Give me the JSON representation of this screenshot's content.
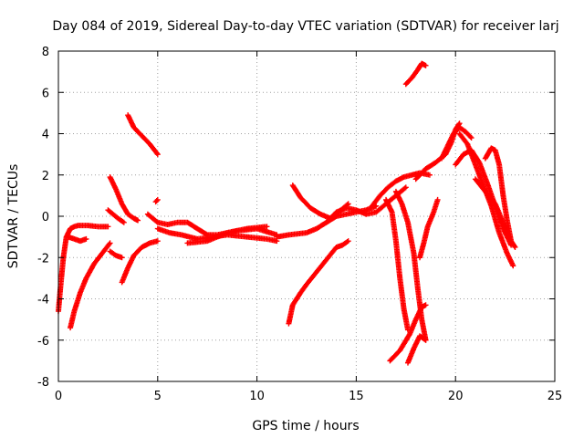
{
  "chart_data": {
    "type": "scatter",
    "title": "Day 084 of 2019, Sidereal Day-to-day VTEC variation (SDTVAR) for receiver larj",
    "xlabel": "GPS time / hours",
    "ylabel": "SDTVAR / TECUs",
    "xlim": [
      0,
      25
    ],
    "ylim": [
      -8,
      8
    ],
    "xticks": [
      0,
      5,
      10,
      15,
      20,
      25
    ],
    "yticks": [
      -8,
      -6,
      -4,
      -2,
      0,
      2,
      4,
      6,
      8
    ],
    "grid": true,
    "marker": "+",
    "series_color": "#ff0000",
    "segments": [
      {
        "name": "s1",
        "x": [
          0.0,
          0.1,
          0.25,
          0.4,
          0.6,
          0.8,
          1.0,
          1.5,
          2.0,
          2.5
        ],
        "y": [
          -4.6,
          -3.5,
          -2.0,
          -1.0,
          -0.6,
          -0.5,
          -0.45,
          -0.45,
          -0.5,
          -0.5
        ]
      },
      {
        "name": "s2",
        "x": [
          0.6,
          0.8,
          1.1,
          1.4,
          1.8,
          2.2,
          2.6
        ],
        "y": [
          -5.4,
          -4.6,
          -3.7,
          -3.0,
          -2.3,
          -1.8,
          -1.3
        ]
      },
      {
        "name": "s3",
        "x": [
          0.5,
          0.8,
          1.1,
          1.4
        ],
        "y": [
          -1.0,
          -1.1,
          -1.2,
          -1.1
        ]
      },
      {
        "name": "s4",
        "x": [
          2.6,
          2.9,
          3.2,
          3.5,
          3.8,
          4.0
        ],
        "y": [
          1.9,
          1.3,
          0.6,
          0.1,
          -0.1,
          -0.2
        ]
      },
      {
        "name": "s5",
        "x": [
          2.5,
          3.0,
          3.3
        ],
        "y": [
          0.3,
          -0.1,
          -0.3
        ]
      },
      {
        "name": "s6",
        "x": [
          2.6,
          2.9,
          3.2
        ],
        "y": [
          -1.7,
          -1.9,
          -2.0
        ]
      },
      {
        "name": "s7",
        "x": [
          3.2,
          3.5,
          3.8,
          4.2,
          4.6,
          5.0
        ],
        "y": [
          -3.2,
          -2.5,
          -1.9,
          -1.5,
          -1.3,
          -1.2
        ]
      },
      {
        "name": "s8",
        "x": [
          3.5,
          3.8,
          4.2,
          4.6,
          5.0
        ],
        "y": [
          4.9,
          4.3,
          3.9,
          3.5,
          3.0
        ]
      },
      {
        "name": "s9",
        "x": [
          4.9,
          5.0
        ],
        "y": [
          0.7,
          0.8
        ]
      },
      {
        "name": "s10",
        "x": [
          4.5,
          5.0,
          5.5,
          6.0,
          6.5,
          7.0,
          7.5,
          8.0,
          9.0,
          10.0,
          11.0
        ],
        "y": [
          0.1,
          -0.3,
          -0.4,
          -0.3,
          -0.3,
          -0.6,
          -0.9,
          -0.9,
          -0.7,
          -0.6,
          -0.9
        ]
      },
      {
        "name": "s11",
        "x": [
          5.0,
          5.6,
          6.2,
          7.0,
          7.8,
          8.5,
          9.5,
          10.5,
          11.0
        ],
        "y": [
          -0.6,
          -0.8,
          -0.9,
          -1.1,
          -1.0,
          -0.9,
          -1.0,
          -1.1,
          -1.2
        ]
      },
      {
        "name": "s12",
        "x": [
          6.5,
          7.5,
          8.5,
          9.5,
          10.5
        ],
        "y": [
          -1.3,
          -1.2,
          -0.8,
          -0.6,
          -0.5
        ]
      },
      {
        "name": "s13",
        "x": [
          11.0,
          11.6,
          12.5,
          13.0,
          13.5,
          14.0,
          14.5,
          15.0,
          15.5,
          16.0
        ],
        "y": [
          -1.0,
          -0.9,
          -0.8,
          -0.6,
          -0.3,
          0.0,
          0.1,
          0.2,
          0.3,
          0.5
        ]
      },
      {
        "name": "s14",
        "x": [
          11.6,
          11.8,
          12.2,
          12.5,
          13.0,
          13.5,
          14.0,
          14.3,
          14.6
        ],
        "y": [
          -5.2,
          -4.3,
          -3.7,
          -3.3,
          -2.7,
          -2.1,
          -1.5,
          -1.4,
          -1.2
        ]
      },
      {
        "name": "s15",
        "x": [
          11.8,
          12.2,
          12.7,
          13.2,
          13.7,
          14.1,
          14.6
        ],
        "y": [
          1.5,
          0.9,
          0.4,
          0.1,
          -0.1,
          0.2,
          0.6
        ]
      },
      {
        "name": "s16",
        "x": [
          13.5,
          14.0,
          14.5,
          15.0,
          15.5,
          16.0,
          16.5,
          17.0,
          17.5
        ],
        "y": [
          -0.3,
          0.2,
          0.4,
          0.3,
          0.1,
          0.2,
          0.6,
          1.0,
          1.4
        ]
      },
      {
        "name": "s17",
        "x": [
          15.8,
          16.2,
          16.6,
          17.0,
          17.4,
          17.8,
          18.2,
          18.7
        ],
        "y": [
          0.5,
          1.0,
          1.4,
          1.7,
          1.9,
          2.0,
          2.1,
          2.0
        ]
      },
      {
        "name": "s18",
        "x": [
          16.5,
          16.8,
          17.0,
          17.2,
          17.4,
          17.6
        ],
        "y": [
          0.8,
          0.2,
          -1.2,
          -3.0,
          -4.5,
          -5.5
        ]
      },
      {
        "name": "s19",
        "x": [
          17.0,
          17.3,
          17.6,
          17.9,
          18.1,
          18.3,
          18.5
        ],
        "y": [
          1.2,
          0.6,
          -0.3,
          -1.8,
          -3.5,
          -5.0,
          -6.0
        ]
      },
      {
        "name": "s20",
        "x": [
          16.7,
          17.2,
          17.7,
          18.0,
          18.3,
          18.5
        ],
        "y": [
          -7.0,
          -6.5,
          -5.7,
          -5.0,
          -4.4,
          -4.3
        ]
      },
      {
        "name": "s21",
        "x": [
          17.6,
          17.9,
          18.2,
          18.5
        ],
        "y": [
          -7.1,
          -6.4,
          -5.8,
          -6.0
        ]
      },
      {
        "name": "s22",
        "x": [
          17.5,
          17.8,
          18.1,
          18.3,
          18.5
        ],
        "y": [
          6.4,
          6.7,
          7.1,
          7.4,
          7.3
        ]
      },
      {
        "name": "s23",
        "x": [
          18.2,
          18.4,
          18.6,
          18.9,
          19.1
        ],
        "y": [
          -2.0,
          -1.3,
          -0.5,
          0.2,
          0.8
        ]
      },
      {
        "name": "s24",
        "x": [
          18.0,
          18.5,
          19.0,
          19.5,
          19.8,
          20.0,
          20.2
        ],
        "y": [
          1.8,
          2.3,
          2.6,
          3.0,
          3.6,
          4.2,
          4.5
        ]
      },
      {
        "name": "s25",
        "x": [
          19.3,
          19.6,
          19.9,
          20.2,
          20.5,
          20.8
        ],
        "y": [
          2.8,
          3.4,
          4.0,
          4.3,
          4.1,
          3.8
        ]
      },
      {
        "name": "s26",
        "x": [
          20.2,
          20.6,
          21.0,
          21.4,
          21.8,
          22.2,
          22.6,
          22.9
        ],
        "y": [
          4.0,
          3.5,
          2.5,
          1.5,
          0.5,
          -0.8,
          -1.8,
          -2.4
        ]
      },
      {
        "name": "s27",
        "x": [
          20.0,
          20.4,
          20.8,
          21.2,
          21.6,
          22.0,
          22.4,
          22.8
        ],
        "y": [
          2.5,
          3.0,
          3.2,
          2.6,
          1.6,
          0.5,
          -0.6,
          -1.4
        ]
      },
      {
        "name": "s28",
        "x": [
          21.5,
          21.8,
          22.0,
          22.2,
          22.4,
          22.6,
          22.8,
          23.0
        ],
        "y": [
          2.8,
          3.3,
          3.2,
          2.5,
          1.0,
          -0.2,
          -1.2,
          -1.5
        ]
      },
      {
        "name": "s29",
        "x": [
          21.0,
          21.5,
          22.0,
          22.4,
          22.7
        ],
        "y": [
          1.8,
          1.2,
          0.6,
          -0.3,
          -1.0
        ]
      }
    ]
  }
}
